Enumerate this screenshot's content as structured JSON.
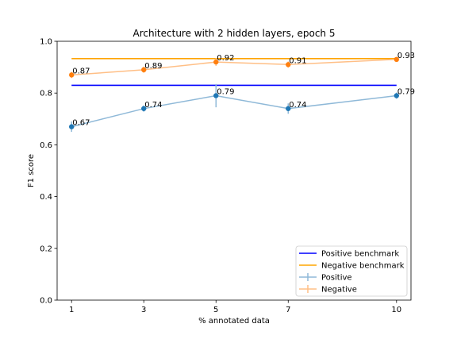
{
  "chart_data": {
    "type": "line",
    "title": "Architecture with 2 hidden layers, epoch 5",
    "xlabel": "% annotated data",
    "ylabel": "F1 score",
    "x": [
      1,
      3,
      5,
      7,
      10
    ],
    "x_ticks": [
      "1",
      "3",
      "5",
      "7",
      "10"
    ],
    "y_ticks": [
      "0.0",
      "0.2",
      "0.4",
      "0.6",
      "0.8",
      "1.0"
    ],
    "xlim": [
      0.6,
      10.4
    ],
    "ylim": [
      0,
      1
    ],
    "grid": false,
    "legend_position": "lower-right",
    "series": [
      {
        "name": "Positive",
        "values": [
          0.67,
          0.74,
          0.79,
          0.74,
          0.79
        ],
        "labels": [
          "0.67",
          "0.74",
          "0.79",
          "0.74",
          "0.79"
        ],
        "errors": [
          0.02,
          0.012,
          0.045,
          0.02,
          0.012
        ],
        "line_color": "#8fb9d8",
        "marker_color": "#1f77b4"
      },
      {
        "name": "Negative",
        "values": [
          0.87,
          0.89,
          0.92,
          0.91,
          0.93
        ],
        "labels": [
          "0.87",
          "0.89",
          "0.92",
          "0.91",
          "0.93"
        ],
        "errors": [
          0.012,
          0.012,
          0.015,
          0.012,
          0.008
        ],
        "line_color": "#ffbf86",
        "marker_color": "#ff7f0e"
      }
    ],
    "benchmarks": [
      {
        "name": "Positive benchmark",
        "value": 0.83,
        "color": "#0000ff"
      },
      {
        "name": "Negative benchmark",
        "value": 0.933,
        "color": "#ffa500"
      }
    ]
  }
}
